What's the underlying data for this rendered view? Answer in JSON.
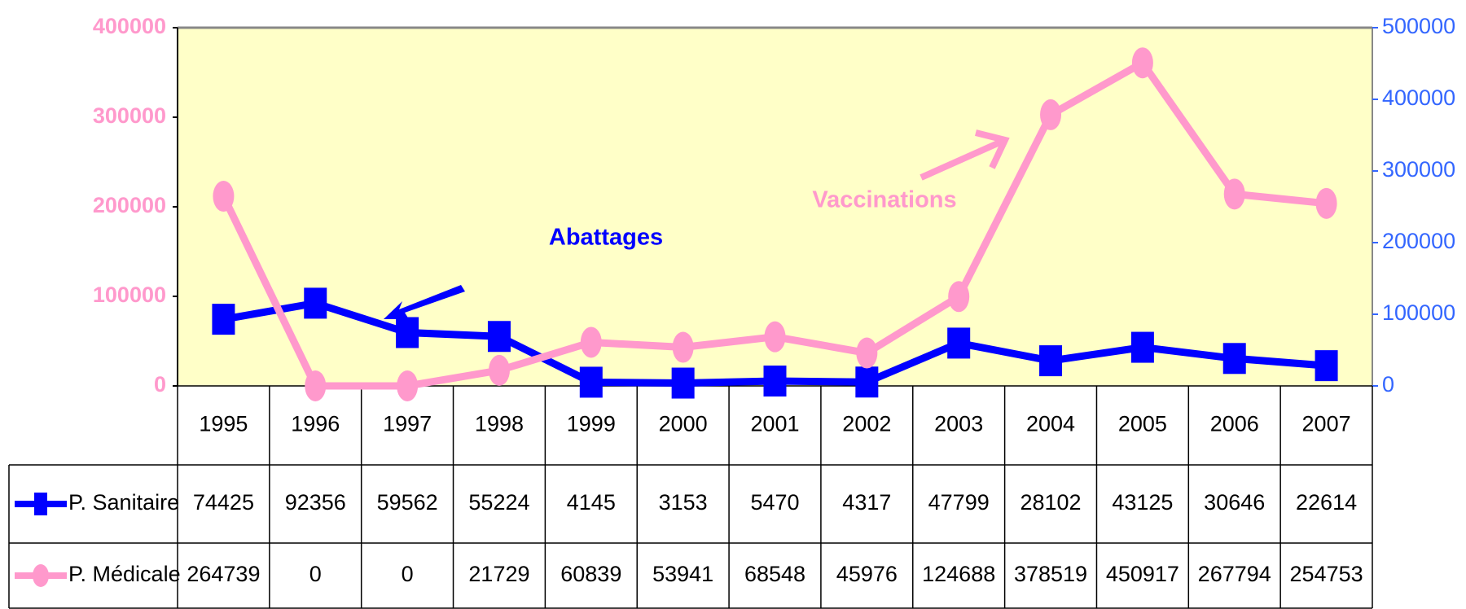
{
  "chart_data": {
    "type": "line",
    "categories": [
      "1995",
      "1996",
      "1997",
      "1998",
      "1999",
      "2000",
      "2001",
      "2002",
      "2003",
      "2004",
      "2005",
      "2006",
      "2007"
    ],
    "series": [
      {
        "name": "P. Sanitaire",
        "color": "#0000ff",
        "axis": "y",
        "values": [
          74425,
          92356,
          59562,
          55224,
          4145,
          3153,
          5470,
          4317,
          47799,
          28102,
          43125,
          30646,
          22614
        ]
      },
      {
        "name": "P. Médicale",
        "color": "#ff99cc",
        "axis": "y2",
        "values": [
          264739,
          0,
          0,
          21729,
          60839,
          53941,
          68548,
          45976,
          124688,
          378519,
          450917,
          267794,
          254753
        ]
      }
    ],
    "ylim": [
      0,
      400000
    ],
    "yticks": [
      0,
      100000,
      200000,
      300000,
      400000
    ],
    "y2lim": [
      0,
      500000
    ],
    "y2ticks": [
      0,
      100000,
      200000,
      300000,
      400000,
      500000
    ],
    "annotations": [
      {
        "text": "Abattages",
        "color": "#0000ff"
      },
      {
        "text": "Vaccinations",
        "color": "#ff99cc"
      }
    ]
  }
}
